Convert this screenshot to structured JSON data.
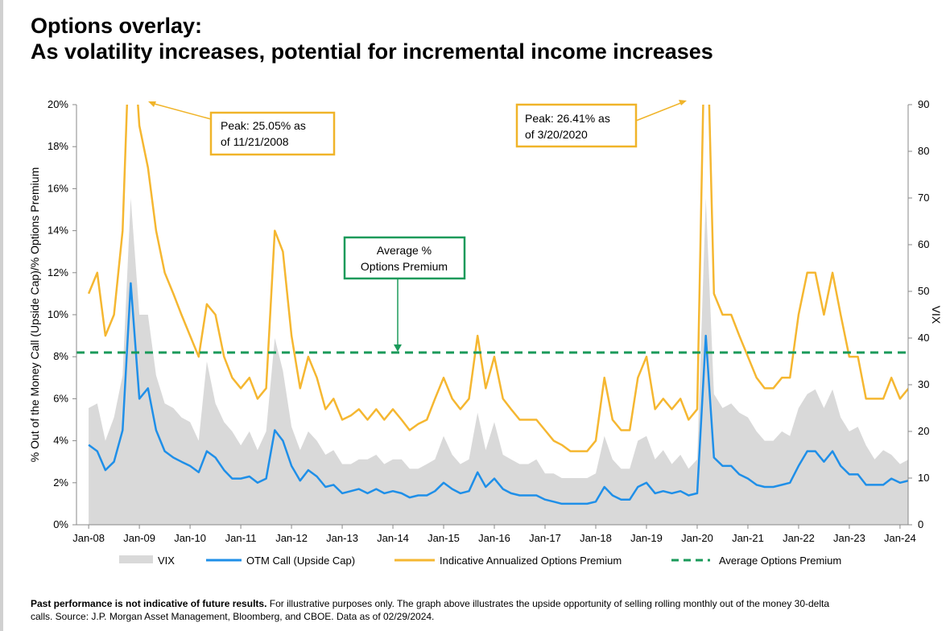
{
  "chart_data": {
    "type": "line",
    "title": [
      "Options overlay:",
      "As volatility increases, potential for incremental income increases"
    ],
    "y_label": "% Out of the Money Call (Upside Cap)/% Options Premium",
    "y2_label": "VIX",
    "x": [
      2008,
      2008.17,
      2008.33,
      2008.5,
      2008.67,
      2008.83,
      2009,
      2009.17,
      2009.33,
      2009.5,
      2009.67,
      2009.83,
      2010,
      2010.17,
      2010.33,
      2010.5,
      2010.67,
      2010.83,
      2011,
      2011.17,
      2011.33,
      2011.5,
      2011.67,
      2011.83,
      2012,
      2012.17,
      2012.33,
      2012.5,
      2012.67,
      2012.83,
      2013,
      2013.17,
      2013.33,
      2013.5,
      2013.67,
      2013.83,
      2014,
      2014.17,
      2014.33,
      2014.5,
      2014.67,
      2014.83,
      2015,
      2015.17,
      2015.33,
      2015.5,
      2015.67,
      2015.83,
      2016,
      2016.17,
      2016.33,
      2016.5,
      2016.67,
      2016.83,
      2017,
      2017.17,
      2017.33,
      2017.5,
      2017.67,
      2017.83,
      2018,
      2018.17,
      2018.33,
      2018.5,
      2018.67,
      2018.83,
      2019,
      2019.17,
      2019.33,
      2019.5,
      2019.67,
      2019.83,
      2020,
      2020.17,
      2020.33,
      2020.5,
      2020.67,
      2020.83,
      2021,
      2021.17,
      2021.33,
      2021.5,
      2021.67,
      2021.83,
      2022,
      2022.17,
      2022.33,
      2022.5,
      2022.67,
      2022.83,
      2023,
      2023.17,
      2023.33,
      2023.5,
      2023.67,
      2023.83,
      2024,
      2024.17
    ],
    "series": [
      {
        "name": "VIX",
        "color": "#d9d9d9",
        "axis": "y2",
        "kind": "area",
        "values": [
          25,
          26,
          18,
          23,
          32,
          70,
          45,
          45,
          32,
          26,
          25,
          23,
          22,
          18,
          35,
          26,
          22,
          20,
          17,
          20,
          16,
          20,
          40,
          33,
          21,
          16,
          20,
          18,
          15,
          16,
          13,
          13,
          14,
          14,
          15,
          13,
          14,
          14,
          12,
          12,
          13,
          14,
          19,
          15,
          13,
          14,
          24,
          16,
          22,
          15,
          14,
          13,
          13,
          14,
          11,
          11,
          10,
          10,
          10,
          10,
          11,
          19,
          14,
          12,
          12,
          18,
          19,
          14,
          16,
          13,
          15,
          12,
          14,
          70,
          28,
          25,
          26,
          24,
          23,
          20,
          18,
          18,
          20,
          19,
          25,
          28,
          29,
          25,
          29,
          23,
          20,
          21,
          17,
          14,
          16,
          15,
          13,
          14
        ]
      },
      {
        "name": "OTM Call (Upside Cap)",
        "color": "#1f8fe8",
        "axis": "y",
        "kind": "line",
        "values": [
          3.8,
          3.5,
          2.6,
          3,
          4.5,
          11.5,
          6,
          6.5,
          4.5,
          3.5,
          3.2,
          3,
          2.8,
          2.5,
          3.5,
          3.2,
          2.6,
          2.2,
          2.2,
          2.3,
          2,
          2.2,
          4.5,
          4,
          2.8,
          2.1,
          2.6,
          2.3,
          1.8,
          1.9,
          1.5,
          1.6,
          1.7,
          1.5,
          1.7,
          1.5,
          1.6,
          1.5,
          1.3,
          1.4,
          1.4,
          1.6,
          2,
          1.7,
          1.5,
          1.6,
          2.5,
          1.8,
          2.2,
          1.7,
          1.5,
          1.4,
          1.4,
          1.4,
          1.2,
          1.1,
          1,
          1,
          1,
          1,
          1.1,
          1.8,
          1.4,
          1.2,
          1.2,
          1.8,
          2,
          1.5,
          1.6,
          1.5,
          1.6,
          1.4,
          1.5,
          9,
          3.2,
          2.8,
          2.8,
          2.4,
          2.2,
          1.9,
          1.8,
          1.8,
          1.9,
          2,
          2.8,
          3.5,
          3.5,
          3,
          3.5,
          2.8,
          2.4,
          2.4,
          1.9,
          1.9,
          1.9,
          2.2,
          2,
          2.1
        ]
      },
      {
        "name": "Indicative Annualized Options Premium",
        "color": "#f5b731",
        "axis": "y",
        "kind": "line",
        "values": [
          11,
          12,
          9,
          10,
          14,
          25.05,
          19,
          17,
          14,
          12,
          11,
          10,
          9,
          8,
          10.5,
          10,
          8,
          7,
          6.5,
          7,
          6,
          6.5,
          14,
          13,
          9,
          6.5,
          8,
          7,
          5.5,
          6,
          5,
          5.2,
          5.5,
          5,
          5.5,
          5,
          5.5,
          5,
          4.5,
          4.8,
          5,
          6,
          7,
          6,
          5.5,
          6,
          9,
          6.5,
          8,
          6,
          5.5,
          5,
          5,
          5,
          4.5,
          4,
          3.8,
          3.5,
          3.5,
          3.5,
          4,
          7,
          5,
          4.5,
          4.5,
          7,
          8,
          5.5,
          6,
          5.5,
          6,
          5,
          5.5,
          26.41,
          11,
          10,
          10,
          9,
          8,
          7,
          6.5,
          6.5,
          7,
          7,
          10,
          12,
          12,
          10,
          12,
          10,
          8,
          8,
          6,
          6,
          6,
          7,
          6,
          6.5
        ]
      },
      {
        "name": "Average Options Premium",
        "color": "#1a9a5a",
        "axis": "y",
        "kind": "hline",
        "value": 8.2
      }
    ],
    "xlim": [
      2007.76,
      2024.16
    ],
    "xticks": [
      {
        "value": 2008,
        "label": "Jan-08"
      },
      {
        "value": 2009,
        "label": "Jan-09"
      },
      {
        "value": 2010,
        "label": "Jan-10"
      },
      {
        "value": 2011,
        "label": "Jan-11"
      },
      {
        "value": 2012,
        "label": "Jan-12"
      },
      {
        "value": 2013,
        "label": "Jan-13"
      },
      {
        "value": 2014,
        "label": "Jan-14"
      },
      {
        "value": 2015,
        "label": "Jan-15"
      },
      {
        "value": 2016,
        "label": "Jan-16"
      },
      {
        "value": 2017,
        "label": "Jan-17"
      },
      {
        "value": 2018,
        "label": "Jan-18"
      },
      {
        "value": 2019,
        "label": "Jan-19"
      },
      {
        "value": 2020,
        "label": "Jan-20"
      },
      {
        "value": 2021,
        "label": "Jan-21"
      },
      {
        "value": 2022,
        "label": "Jan-22"
      },
      {
        "value": 2023,
        "label": "Jan-23"
      },
      {
        "value": 2024,
        "label": "Jan-24"
      }
    ],
    "ylim": [
      0,
      20
    ],
    "yticks": [
      {
        "value": 0,
        "label": "0%"
      },
      {
        "value": 2,
        "label": "2%"
      },
      {
        "value": 4,
        "label": "4%"
      },
      {
        "value": 6,
        "label": "6%"
      },
      {
        "value": 8,
        "label": "8%"
      },
      {
        "value": 10,
        "label": "10%"
      },
      {
        "value": 12,
        "label": "12%"
      },
      {
        "value": 14,
        "label": "14%"
      },
      {
        "value": 16,
        "label": "16%"
      },
      {
        "value": 18,
        "label": "18%"
      },
      {
        "value": 20,
        "label": "20%"
      }
    ],
    "y2lim": [
      0,
      90
    ],
    "y2ticks": [
      0,
      10,
      20,
      30,
      40,
      50,
      60,
      70,
      80,
      90
    ],
    "annotations": [
      {
        "lines": [
          "Peak: 25.05% as",
          "of 11/21/2008"
        ]
      },
      {
        "lines": [
          "Peak: 26.41% as",
          "of 3/20/2020"
        ]
      },
      {
        "lines": [
          "Average %",
          "Options Premium"
        ]
      }
    ],
    "footnote": {
      "bold": "Past performance is not indicative of future results.",
      "text": [
        " For illustrative purposes only. The graph above illustrates the upside opportunity of selling rolling monthly out of the money 30-delta",
        "calls. Source: J.P. Morgan Asset Management, Bloomberg, and CBOE. Data as of 02/29/2024."
      ]
    }
  }
}
